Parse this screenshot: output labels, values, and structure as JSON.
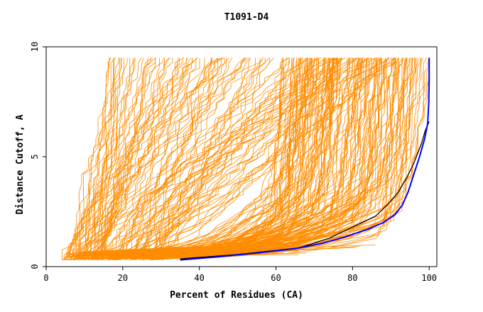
{
  "chart_data": {
    "type": "line",
    "title": "T1091-D4",
    "xlabel": "Percent of Residues (CA)",
    "ylabel": "Distance Cutoff, A",
    "xlim": [
      0,
      102
    ],
    "ylim": [
      0,
      10
    ],
    "x_ticks": [
      "0",
      "20",
      "40",
      "60",
      "80",
      "100"
    ],
    "y_ticks": [
      "0",
      "5",
      "10"
    ],
    "grid": false,
    "legend": "none",
    "colors": {
      "models": "#ff8c00",
      "black_model": "#000000",
      "blue_model": "#0000ff",
      "axes": "#000000"
    },
    "series": [
      {
        "color": "black",
        "points": [
          [
            35,
            0.35
          ],
          [
            50,
            0.55
          ],
          [
            66,
            0.85
          ],
          [
            74,
            1.3
          ],
          [
            80,
            1.8
          ],
          [
            86,
            2.3
          ],
          [
            89,
            2.8
          ],
          [
            92,
            3.4
          ],
          [
            94,
            4.0
          ],
          [
            96,
            4.7
          ],
          [
            98,
            5.6
          ],
          [
            99,
            6.2
          ],
          [
            100,
            6.6
          ]
        ]
      },
      {
        "color": "blue",
        "points": [
          [
            35,
            0.3
          ],
          [
            45,
            0.45
          ],
          [
            55,
            0.62
          ],
          [
            65,
            0.82
          ],
          [
            72,
            1.05
          ],
          [
            78,
            1.35
          ],
          [
            84,
            1.7
          ],
          [
            88,
            2.0
          ],
          [
            91,
            2.35
          ],
          [
            93,
            2.8
          ],
          [
            94.5,
            3.4
          ],
          [
            96,
            4.2
          ],
          [
            97.5,
            5.0
          ],
          [
            98.8,
            5.8
          ],
          [
            99.6,
            6.5
          ],
          [
            99.9,
            7.5
          ],
          [
            100,
            8.5
          ],
          [
            100,
            9.5
          ]
        ]
      }
    ]
  }
}
